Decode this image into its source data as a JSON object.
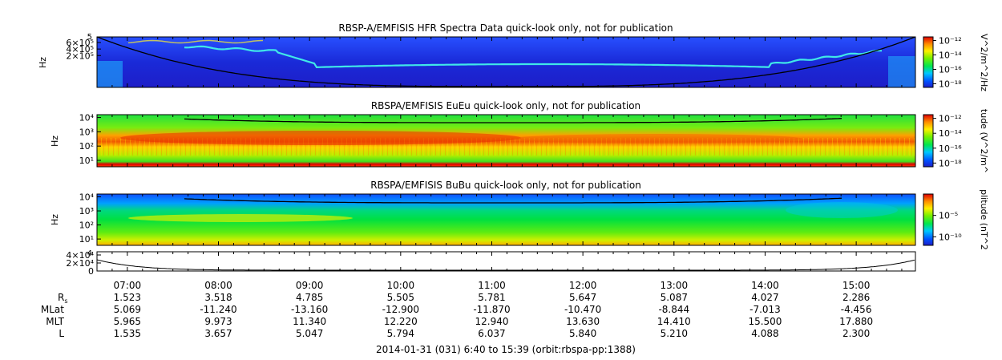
{
  "chart_data": [
    {
      "type": "heatmap",
      "title": "RBSP-A/EMFISIS  HFR Spectra Data quick-look only, not for publication",
      "ylabel": "Hz",
      "ytick_labels": [
        "6×10⁵",
        "4×10⁵",
        "2×10⁵"
      ],
      "ytick_values": [
        600000,
        400000,
        200000
      ],
      "ylim_label": "5",
      "colorbar_label": "V^2/m^2/Hz",
      "colorbar_ticks": [
        "10⁻¹²",
        "10⁻¹⁴",
        "10⁻¹⁶",
        "10⁻¹⁸"
      ],
      "colorbar_exponents": [
        -12,
        -14,
        -16,
        -18
      ],
      "clim_exponent": [
        -18.5,
        -11.5
      ]
    },
    {
      "type": "heatmap",
      "title": "RBSPA/EMFISIS  EuEu quick-look only, not for publication",
      "ylabel": "Hz",
      "ytick_labels": [
        "10⁴",
        "10³",
        "10²",
        "10¹"
      ],
      "ytick_exponents": [
        4,
        3,
        2,
        1
      ],
      "ylim_exponent": [
        0.55,
        4.2
      ],
      "colorbar_label": "tude (V^2/m^",
      "colorbar_ticks": [
        "10⁻¹²",
        "10⁻¹⁴",
        "10⁻¹⁶",
        "10⁻¹⁸"
      ],
      "colorbar_exponents": [
        -12,
        -14,
        -16,
        -18
      ],
      "clim_exponent": [
        -18.5,
        -11.5
      ]
    },
    {
      "type": "heatmap",
      "title": "RBSPA/EMFISIS  BuBu quick-look only, not for publication",
      "ylabel": "Hz",
      "ytick_labels": [
        "10⁴",
        "10³",
        "10²",
        "10¹"
      ],
      "ytick_exponents": [
        4,
        3,
        2,
        1
      ],
      "ylim_exponent": [
        0.55,
        4.2
      ],
      "colorbar_label": "plitude (nT^2",
      "colorbar_ticks": [
        "10⁻⁵",
        "10⁻¹⁰"
      ],
      "colorbar_exponents": [
        -5,
        -10
      ],
      "clim_exponent": [
        -12,
        0
      ]
    },
    {
      "type": "line",
      "ytick_labels": [
        "4×10⁴",
        "2×10⁴",
        "0"
      ],
      "ytick_values": [
        40000,
        20000,
        0
      ],
      "ylim_label": "4",
      "ylim": [
        0,
        48000
      ]
    }
  ],
  "time_axis": {
    "labels": [
      "07:00",
      "08:00",
      "09:00",
      "10:00",
      "11:00",
      "12:00",
      "13:00",
      "14:00",
      "15:00"
    ],
    "hours": [
      7,
      8,
      9,
      10,
      11,
      12,
      13,
      14,
      15
    ],
    "start_hour": 6.667,
    "end_hour": 15.65
  },
  "ephemeris": {
    "row_labels": {
      "rs": "R",
      "rs_sub": "s",
      "mlat": "MLat",
      "mlt": "MLT",
      "l": "L"
    },
    "rs": [
      "1.523",
      "3.518",
      "4.785",
      "5.505",
      "5.781",
      "5.647",
      "5.087",
      "4.027",
      "2.286"
    ],
    "mlat": [
      "5.069",
      "-11.240",
      "-13.160",
      "-12.900",
      "-11.870",
      "-10.470",
      "-8.844",
      "-7.013",
      "-4.456"
    ],
    "mlt": [
      "5.965",
      "9.973",
      "11.340",
      "12.220",
      "12.940",
      "13.630",
      "14.410",
      "15.500",
      "17.880"
    ],
    "l": [
      "1.535",
      "3.657",
      "5.047",
      "5.794",
      "6.037",
      "5.840",
      "5.210",
      "4.088",
      "2.300"
    ]
  },
  "footer": "2014-01-31 (031) 6:40 to 15:39 (orbit:rbspa-pp:1388)",
  "colors": {
    "spectrum_low": "#0000c8",
    "spectrum_high": "#e00000",
    "line": "#000000"
  }
}
